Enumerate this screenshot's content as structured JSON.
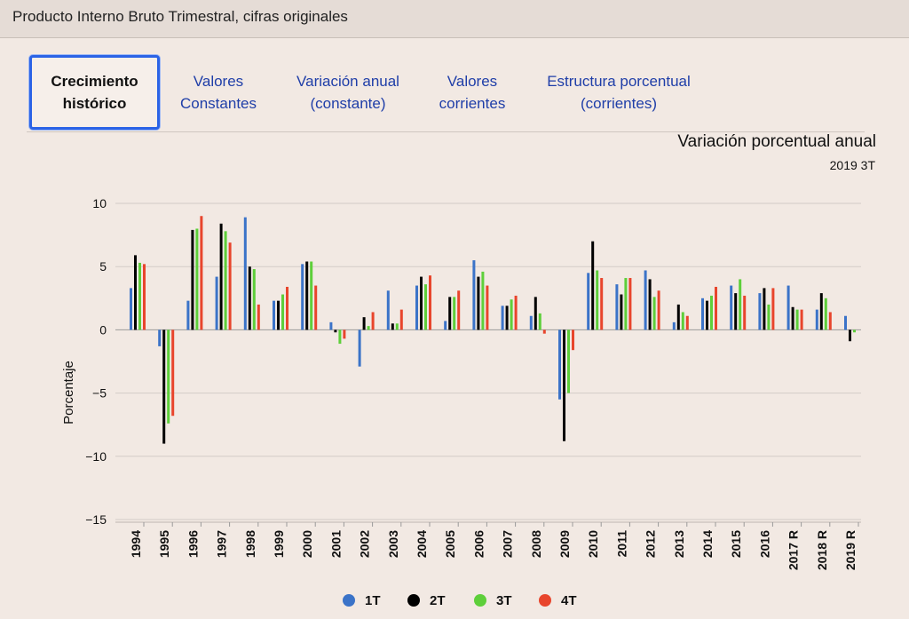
{
  "window": {
    "title": "Producto Interno Bruto Trimestral, cifras originales"
  },
  "tabs": [
    {
      "line1": "Crecimiento",
      "line2": "histórico",
      "active": true
    },
    {
      "line1": "Valores",
      "line2": "Constantes",
      "active": false
    },
    {
      "line1": "Variación anual",
      "line2": "(constante)",
      "active": false
    },
    {
      "line1": "Valores",
      "line2": "corrientes",
      "active": false
    },
    {
      "line1": "Estructura porcentual",
      "line2": "(corrientes)",
      "active": false
    }
  ],
  "colors": {
    "s1": "#3b73c8",
    "s2": "#000000",
    "s3": "#5ecf3a",
    "s4": "#e8452c"
  },
  "chart_data": {
    "type": "bar",
    "title": "Variación porcentual anual",
    "subtitle": "2019 3T",
    "xlabel": "",
    "ylabel": "Porcentaje",
    "ylim": [
      -15,
      10
    ],
    "yticks": [
      "10",
      "5",
      "0",
      "−5",
      "−10",
      "−15"
    ],
    "grid": true,
    "legend_position": "bottom",
    "categories": [
      "1994",
      "1995",
      "1996",
      "1997",
      "1998",
      "1999",
      "2000",
      "2001",
      "2002",
      "2003",
      "2004",
      "2005",
      "2006",
      "2007",
      "2008",
      "2009",
      "2010",
      "2011",
      "2012",
      "2013",
      "2014",
      "2015",
      "2016",
      "2017 R",
      "2018 R",
      "2019 R"
    ],
    "series": [
      {
        "name": "1T",
        "values": [
          3.3,
          -1.3,
          2.3,
          4.2,
          8.9,
          2.3,
          5.2,
          0.6,
          -2.9,
          3.1,
          3.5,
          0.7,
          5.5,
          1.9,
          1.1,
          -5.5,
          4.5,
          3.6,
          4.7,
          0.6,
          2.5,
          3.5,
          2.9,
          3.5,
          1.6,
          1.1
        ]
      },
      {
        "name": "2T",
        "values": [
          5.9,
          -9.0,
          7.9,
          8.4,
          5.0,
          2.3,
          5.4,
          -0.2,
          1.0,
          0.5,
          4.2,
          2.6,
          4.2,
          1.9,
          2.6,
          -8.8,
          7.0,
          2.8,
          4.0,
          2.0,
          2.3,
          2.9,
          3.3,
          1.8,
          2.9,
          -0.9
        ]
      },
      {
        "name": "3T",
        "values": [
          5.3,
          -7.4,
          8.0,
          7.8,
          4.8,
          2.8,
          5.4,
          -1.1,
          0.3,
          0.5,
          3.6,
          2.6,
          4.6,
          2.4,
          1.3,
          -5.0,
          4.7,
          4.1,
          2.6,
          1.4,
          2.7,
          4.0,
          2.0,
          1.6,
          2.5,
          -0.2
        ]
      },
      {
        "name": "4T",
        "values": [
          5.2,
          -6.8,
          9.0,
          6.9,
          2.0,
          3.4,
          3.5,
          -0.7,
          1.4,
          1.6,
          4.3,
          3.1,
          3.5,
          2.7,
          -0.3,
          -1.6,
          4.1,
          4.1,
          3.1,
          1.1,
          3.4,
          2.7,
          3.3,
          1.6,
          1.4,
          null
        ]
      }
    ]
  }
}
